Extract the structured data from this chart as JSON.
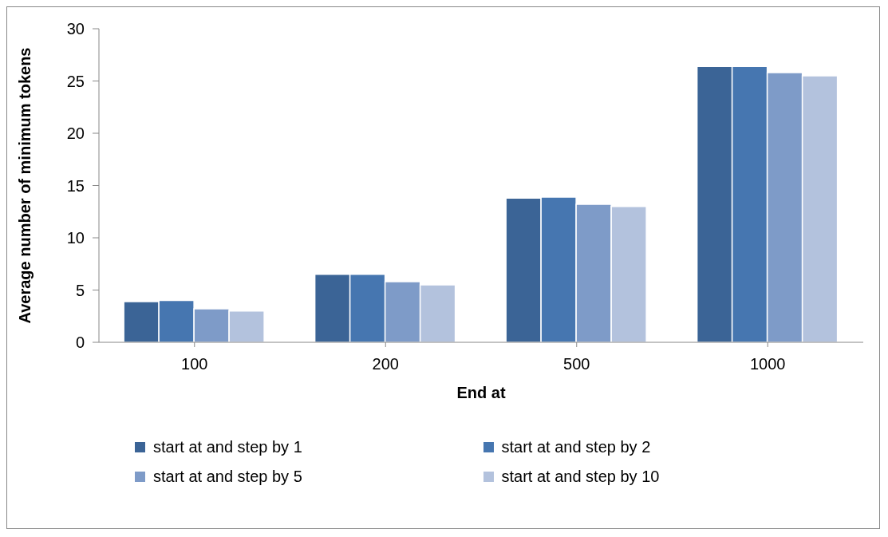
{
  "chart_data": {
    "type": "bar",
    "xlabel": "End at",
    "ylabel": "Average number of minimum tokens",
    "categories": [
      "100",
      "200",
      "500",
      "1000"
    ],
    "series": [
      {
        "name": "start at and step by 1",
        "color": "#3b6496",
        "values": [
          3.9,
          6.5,
          13.8,
          26.4
        ]
      },
      {
        "name": "start at and step by  2",
        "color": "#4676b0",
        "values": [
          4.0,
          6.5,
          13.9,
          26.4
        ]
      },
      {
        "name": "start at and step by  5",
        "color": "#7e9bc8",
        "values": [
          3.2,
          5.8,
          13.2,
          25.8
        ]
      },
      {
        "name": "start at and step by  10",
        "color": "#b3c2dd",
        "values": [
          3.0,
          5.5,
          13.0,
          25.5
        ]
      }
    ],
    "ylim": [
      0,
      30
    ],
    "yticks": [
      0,
      5,
      10,
      15,
      20,
      25,
      30
    ],
    "grid": false,
    "legend": "bottom"
  }
}
